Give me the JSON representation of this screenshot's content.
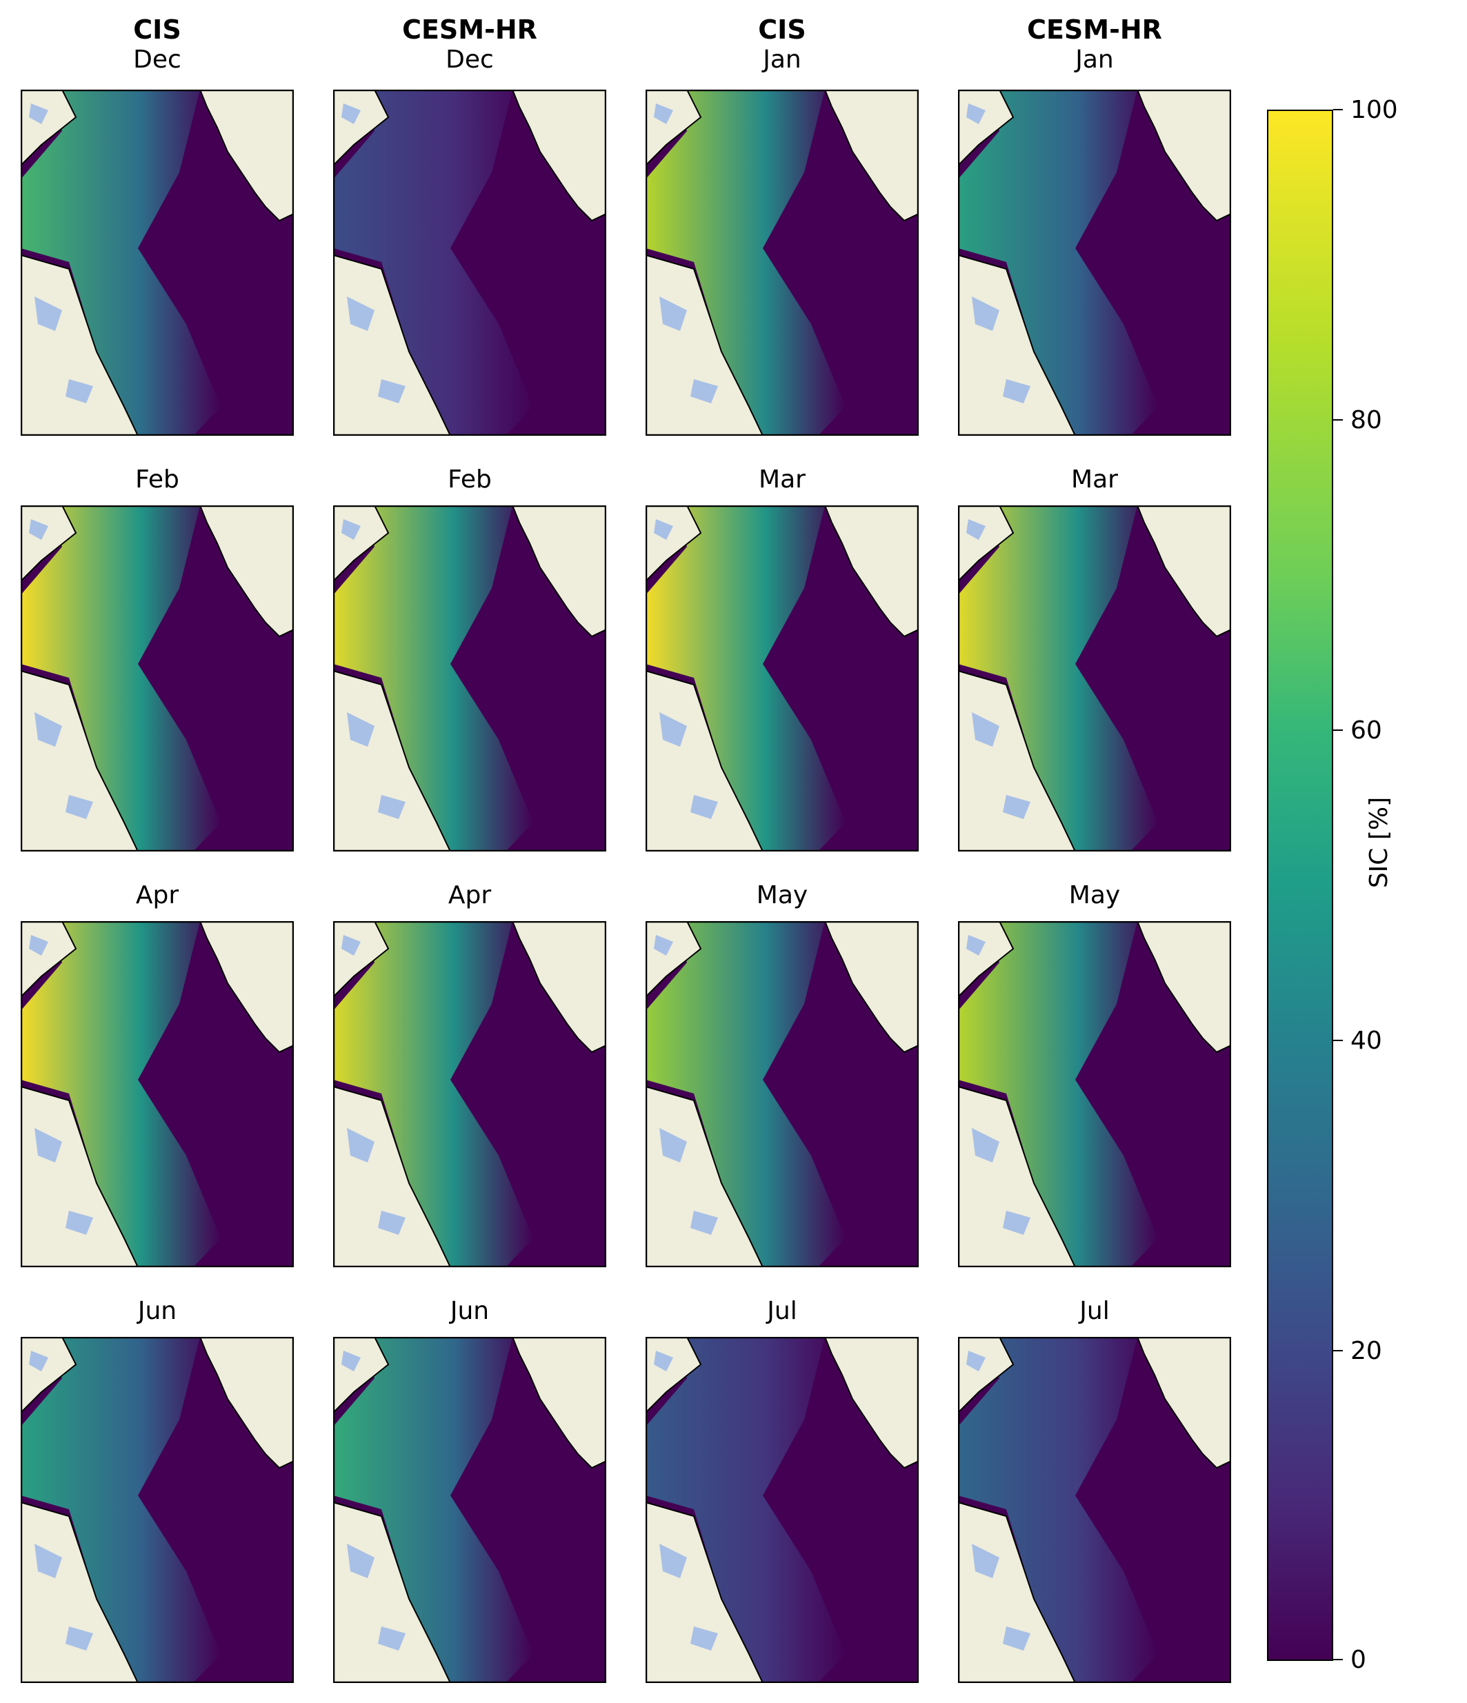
{
  "colorbar": {
    "label": "SIC [%]",
    "ticks": [
      "100",
      "80",
      "60",
      "40",
      "20",
      "0"
    ],
    "colors": [
      "#440154",
      "#482878",
      "#3e4989",
      "#31688e",
      "#26828e",
      "#1f9e89",
      "#35b779",
      "#6ece58",
      "#b5de2b",
      "#fde725"
    ]
  },
  "map_colors": {
    "land": "#efeddc",
    "lakes": "#a8c0e6",
    "coast": "#000000"
  },
  "panels": [
    {
      "source": "CIS",
      "month": "Dec",
      "ice": 0.7
    },
    {
      "source": "CESM-HR",
      "month": "Dec",
      "ice": 0.25
    },
    {
      "source": "CIS",
      "month": "Jan",
      "ice": 0.9
    },
    {
      "source": "CESM-HR",
      "month": "Jan",
      "ice": 0.6
    },
    {
      "source": "",
      "month": "Feb",
      "ice": 1.0
    },
    {
      "source": "",
      "month": "Feb",
      "ice": 0.97
    },
    {
      "source": "",
      "month": "Mar",
      "ice": 1.0
    },
    {
      "source": "",
      "month": "Mar",
      "ice": 0.97
    },
    {
      "source": "",
      "month": "Apr",
      "ice": 1.0
    },
    {
      "source": "",
      "month": "Apr",
      "ice": 0.96
    },
    {
      "source": "",
      "month": "May",
      "ice": 0.85
    },
    {
      "source": "",
      "month": "May",
      "ice": 0.9
    },
    {
      "source": "",
      "month": "Jun",
      "ice": 0.6
    },
    {
      "source": "",
      "month": "Jun",
      "ice": 0.65
    },
    {
      "source": "",
      "month": "Jul",
      "ice": 0.3
    },
    {
      "source": "",
      "month": "Jul",
      "ice": 0.35
    }
  ]
}
